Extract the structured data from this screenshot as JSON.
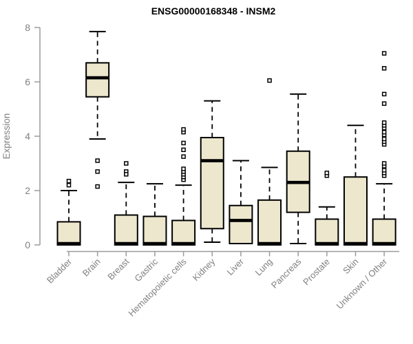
{
  "chart_data": {
    "type": "boxplot",
    "title": "ENSG00000168348 - INSM2",
    "xlabel": "",
    "ylabel": "Expression",
    "ylim": [
      0,
      8
    ],
    "yticks": [
      0,
      2,
      4,
      6,
      8
    ],
    "grid": false,
    "categories": [
      "Bladder",
      "Brain",
      "Breast",
      "Gastric",
      "Hematopoietic cells",
      "Kidney",
      "Liver",
      "Lung",
      "Pancreas",
      "Prostate",
      "Skin",
      "Unknown / Other"
    ],
    "series": [
      {
        "name": "Bladder",
        "min": 0,
        "q1": 0,
        "median": 0.05,
        "q3": 0.85,
        "max": 2.0,
        "outliers": [
          2.2,
          2.35
        ]
      },
      {
        "name": "Brain",
        "min": 3.9,
        "q1": 5.45,
        "median": 6.15,
        "q3": 6.7,
        "max": 7.85,
        "outliers": [
          3.1,
          2.7,
          2.15
        ]
      },
      {
        "name": "Breast",
        "min": 0,
        "q1": 0,
        "median": 0.05,
        "q3": 1.1,
        "max": 2.3,
        "outliers": [
          3.0,
          2.7,
          2.6
        ]
      },
      {
        "name": "Gastric",
        "min": 0,
        "q1": 0,
        "median": 0.05,
        "q3": 1.05,
        "max": 2.25,
        "outliers": []
      },
      {
        "name": "Hematopoietic cells",
        "min": 0,
        "q1": 0,
        "median": 0.05,
        "q3": 0.9,
        "max": 2.2,
        "outliers": [
          2.4,
          2.5,
          2.6,
          2.7,
          2.8,
          3.25,
          3.5,
          3.75,
          4.15,
          4.25
        ]
      },
      {
        "name": "Kidney",
        "min": 0.1,
        "q1": 0.6,
        "median": 3.1,
        "q3": 3.95,
        "max": 5.3,
        "outliers": []
      },
      {
        "name": "Liver",
        "min": 0.05,
        "q1": 0.05,
        "median": 0.9,
        "q3": 1.45,
        "max": 3.1,
        "outliers": []
      },
      {
        "name": "Lung",
        "min": 0,
        "q1": 0,
        "median": 0.05,
        "q3": 1.65,
        "max": 2.85,
        "outliers": [
          6.05
        ]
      },
      {
        "name": "Pancreas",
        "min": 0.05,
        "q1": 1.2,
        "median": 2.3,
        "q3": 3.45,
        "max": 5.55,
        "outliers": []
      },
      {
        "name": "Prostate",
        "min": 0,
        "q1": 0,
        "median": 0.05,
        "q3": 0.95,
        "max": 1.4,
        "outliers": [
          2.55,
          2.65
        ]
      },
      {
        "name": "Skin",
        "min": 0,
        "q1": 0,
        "median": 0.05,
        "q3": 2.5,
        "max": 4.4,
        "outliers": []
      },
      {
        "name": "Unknown / Other",
        "min": 0,
        "q1": 0,
        "median": 0.05,
        "q3": 0.95,
        "max": 2.25,
        "outliers": [
          2.55,
          2.65,
          2.75,
          2.9,
          3.0,
          3.7,
          3.8,
          3.9,
          4.05,
          4.15,
          4.3,
          4.4,
          4.5,
          5.2,
          5.55,
          6.5,
          7.05
        ]
      }
    ],
    "colors": {
      "box_fill": "#ece7cd",
      "box_border": "#000000",
      "median": "#000000",
      "axis": "#9a9a9a",
      "tick_label": "#808080",
      "title": "#000000",
      "background": "#ffffff"
    }
  }
}
